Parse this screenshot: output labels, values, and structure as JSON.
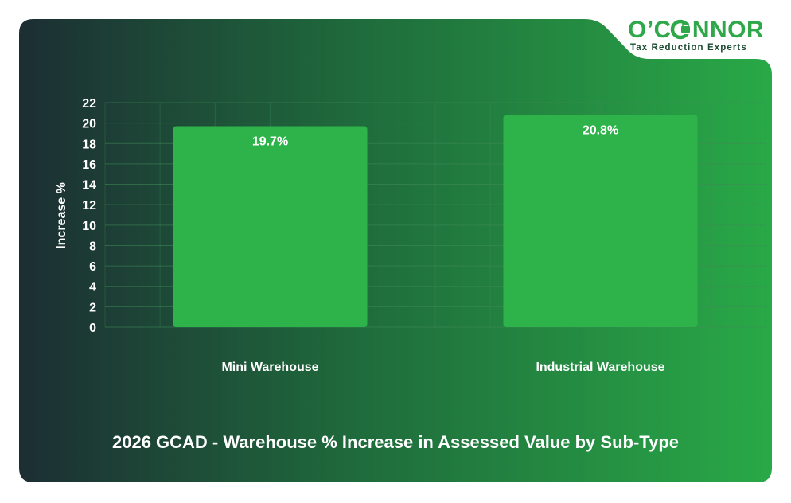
{
  "brand": {
    "name_left": "O’C",
    "name_right": "NNOR",
    "tagline": "Tax Reduction Experts",
    "colors": {
      "green": "#2fa84a",
      "dark": "#1b4a30"
    }
  },
  "colors": {
    "background_dark": "#1c2e33",
    "background_light": "#29a947",
    "bar": "#2db34a",
    "grid": "#3f8a58",
    "text": "#ffffff"
  },
  "chart_data": {
    "type": "bar",
    "title": "2026 GCAD - Warehouse % Increase in Assessed Value by Sub-Type",
    "xlabel": "",
    "ylabel": "Increase %",
    "categories": [
      "Mini Warehouse",
      "Industrial Warehouse"
    ],
    "values": [
      19.7,
      20.8
    ],
    "data_labels": [
      "19.7%",
      "20.8%"
    ],
    "ylim": [
      0,
      22
    ],
    "yticks": [
      "0",
      "2",
      "4",
      "6",
      "8",
      "10",
      "12",
      "14",
      "16",
      "18",
      "20",
      "22"
    ],
    "grid": true,
    "legend": "none"
  }
}
